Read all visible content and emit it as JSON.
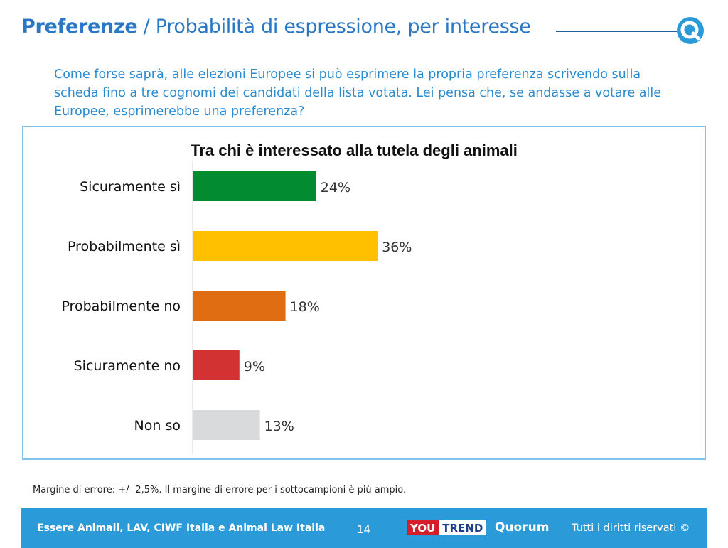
{
  "header": {
    "title_strong": "Preferenze",
    "title_rest": " / Probabilità di espressione, per interesse"
  },
  "question": "Come forse saprà, alle elezioni Europee si può esprimere la propria preferenza scrivendo sulla scheda fino a tre cognomi dei candidati della lista votata. Lei pensa che, se andasse a votare alle Europee, esprimerebbe una preferenza?",
  "chart_data": {
    "type": "bar",
    "orientation": "horizontal",
    "title": "Tra chi è interessato alla tutela degli animali",
    "categories": [
      "Sicuramente sì",
      "Probabilmente sì",
      "Probabilmente no",
      "Sicuramente no",
      "Non so"
    ],
    "values": [
      24,
      36,
      18,
      9,
      13
    ],
    "value_labels": [
      "24%",
      "36%",
      "18%",
      "9%",
      "13%"
    ],
    "colors": [
      "#038c2f",
      "#ffc000",
      "#e06d12",
      "#d33232",
      "#d9dadb"
    ],
    "xlim": [
      0,
      100
    ],
    "grid": false,
    "legend": "none"
  },
  "note": "Margine di errore: +/- 2,5%. Il margine di errore per i sottocampioni è più ampio.",
  "footer": {
    "credits": "Essere Animali, LAV, CIWF Italia e Animal Law Italia",
    "page_number": "14",
    "brand_you": "YOU",
    "brand_trend": "TREND",
    "brand_quorum": "Quorum",
    "rights": "Tutti i diritti riservati ©"
  }
}
